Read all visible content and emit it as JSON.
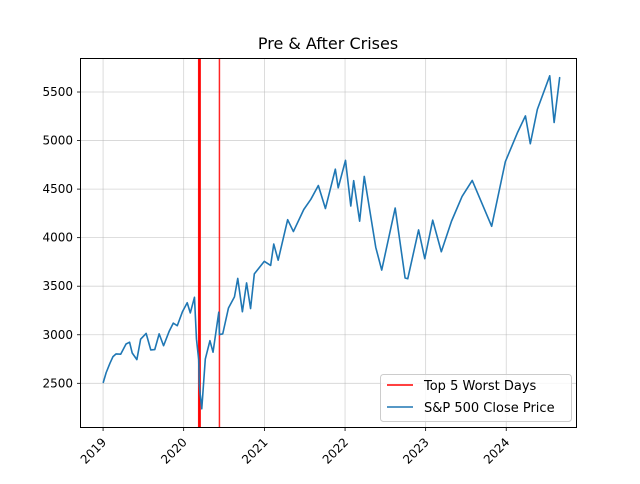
{
  "chart_data": {
    "type": "line",
    "title": "Pre & After Crises",
    "xlabel": "",
    "ylabel": "",
    "xlim": [
      "2018-09-23",
      "2024-11-12"
    ],
    "ylim": [
      2050,
      5840
    ],
    "x_ticks": [
      {
        "date": "2019-01-01",
        "label": "2019"
      },
      {
        "date": "2020-01-01",
        "label": "2020"
      },
      {
        "date": "2021-01-01",
        "label": "2021"
      },
      {
        "date": "2022-01-01",
        "label": "2022"
      },
      {
        "date": "2023-01-01",
        "label": "2023"
      },
      {
        "date": "2024-01-01",
        "label": "2024"
      }
    ],
    "y_ticks": [
      2500,
      3000,
      3500,
      4000,
      4500,
      5000,
      5500
    ],
    "grid": true,
    "legend_position": "lower-right",
    "legend": [
      "Top 5 Worst Days",
      "S&P 500 Close Price"
    ],
    "worst_days": {
      "name": "Top 5 Worst Days",
      "color": "#ff0000",
      "dates": [
        "2020-03-09",
        "2020-03-12",
        "2020-03-16",
        "2020-03-11",
        "2020-06-11"
      ]
    },
    "series": [
      {
        "name": "S&P 500 Close Price",
        "color": "#1f77b4",
        "points": [
          [
            "2019-01-02",
            2510
          ],
          [
            "2019-01-15",
            2610
          ],
          [
            "2019-02-01",
            2706
          ],
          [
            "2019-02-15",
            2775
          ],
          [
            "2019-03-01",
            2803
          ],
          [
            "2019-03-22",
            2800
          ],
          [
            "2019-04-15",
            2905
          ],
          [
            "2019-05-01",
            2923
          ],
          [
            "2019-05-13",
            2812
          ],
          [
            "2019-06-03",
            2744
          ],
          [
            "2019-06-20",
            2954
          ],
          [
            "2019-07-15",
            3014
          ],
          [
            "2019-08-05",
            2844
          ],
          [
            "2019-08-23",
            2847
          ],
          [
            "2019-09-12",
            3009
          ],
          [
            "2019-10-02",
            2887
          ],
          [
            "2019-10-28",
            3039
          ],
          [
            "2019-11-15",
            3120
          ],
          [
            "2019-12-03",
            3093
          ],
          [
            "2019-12-27",
            3240
          ],
          [
            "2020-01-17",
            3330
          ],
          [
            "2020-01-31",
            3225
          ],
          [
            "2020-02-19",
            3386
          ],
          [
            "2020-02-28",
            2954
          ],
          [
            "2020-03-09",
            2746
          ],
          [
            "2020-03-12",
            2480
          ],
          [
            "2020-03-16",
            2386
          ],
          [
            "2020-03-23",
            2237
          ],
          [
            "2020-04-08",
            2750
          ],
          [
            "2020-04-29",
            2939
          ],
          [
            "2020-05-13",
            2820
          ],
          [
            "2020-06-08",
            3232
          ],
          [
            "2020-06-11",
            3002
          ],
          [
            "2020-06-26",
            3009
          ],
          [
            "2020-07-22",
            3276
          ],
          [
            "2020-08-18",
            3390
          ],
          [
            "2020-09-02",
            3580
          ],
          [
            "2020-09-23",
            3237
          ],
          [
            "2020-10-12",
            3534
          ],
          [
            "2020-10-30",
            3270
          ],
          [
            "2020-11-16",
            3627
          ],
          [
            "2020-12-31",
            3756
          ],
          [
            "2021-01-29",
            3714
          ],
          [
            "2021-02-12",
            3934
          ],
          [
            "2021-03-04",
            3768
          ],
          [
            "2021-04-16",
            4185
          ],
          [
            "2021-05-12",
            4063
          ],
          [
            "2021-06-28",
            4290
          ],
          [
            "2021-07-30",
            4395
          ],
          [
            "2021-09-02",
            4537
          ],
          [
            "2021-10-04",
            4300
          ],
          [
            "2021-11-18",
            4705
          ],
          [
            "2021-12-01",
            4513
          ],
          [
            "2022-01-03",
            4796
          ],
          [
            "2022-01-27",
            4326
          ],
          [
            "2022-02-09",
            4587
          ],
          [
            "2022-03-08",
            4170
          ],
          [
            "2022-03-29",
            4631
          ],
          [
            "2022-05-20",
            3901
          ],
          [
            "2022-06-16",
            3666
          ],
          [
            "2022-08-16",
            4305
          ],
          [
            "2022-09-30",
            3585
          ],
          [
            "2022-10-12",
            3577
          ],
          [
            "2022-11-30",
            4080
          ],
          [
            "2022-12-28",
            3783
          ],
          [
            "2023-02-02",
            4180
          ],
          [
            "2023-03-13",
            3855
          ],
          [
            "2023-04-28",
            4169
          ],
          [
            "2023-06-15",
            4425
          ],
          [
            "2023-07-31",
            4589
          ],
          [
            "2023-10-27",
            4117
          ],
          [
            "2023-12-28",
            4783
          ],
          [
            "2024-02-22",
            5087
          ],
          [
            "2024-03-28",
            5254
          ],
          [
            "2024-04-19",
            4967
          ],
          [
            "2024-05-21",
            5321
          ],
          [
            "2024-07-16",
            5667
          ],
          [
            "2024-08-05",
            5186
          ],
          [
            "2024-08-30",
            5648
          ]
        ]
      }
    ]
  }
}
